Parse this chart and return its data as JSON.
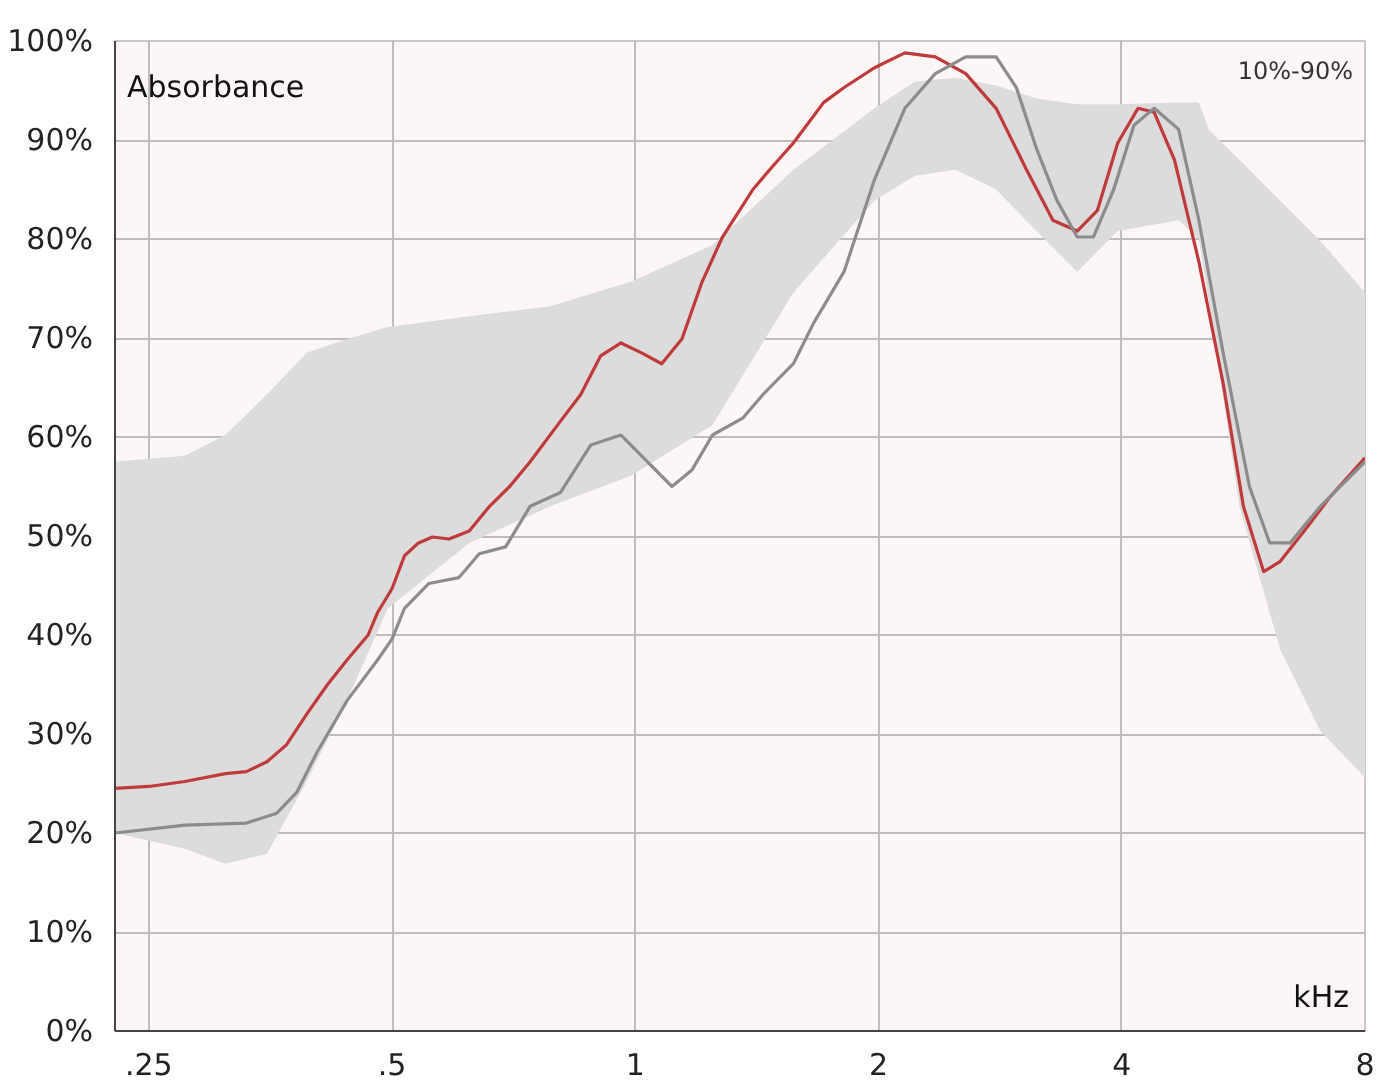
{
  "chart_data": {
    "type": "line",
    "annotations": [
      "10%-90%"
    ],
    "xlabel": "kHz",
    "ylabel": "Absorbance",
    "log": "x",
    "grid": true,
    "xlim": [
      0.227,
      8
    ],
    "ylim": [
      0,
      100
    ],
    "xticks": [
      {
        "value": 0.25,
        "label": ".25"
      },
      {
        "value": 0.5,
        "label": ".5"
      },
      1,
      2,
      4,
      8
    ],
    "yticks": [
      {
        "value": 0,
        "label": "0%"
      },
      {
        "value": 10,
        "label": "10%"
      },
      {
        "value": 20,
        "label": "20%"
      },
      {
        "value": 30,
        "label": "30%"
      },
      {
        "value": 40,
        "label": "40%"
      },
      {
        "value": 50,
        "label": "50%"
      },
      {
        "value": 60,
        "label": "60%"
      },
      {
        "value": 70,
        "label": "70%"
      },
      {
        "value": 80,
        "label": "80%"
      },
      {
        "value": 90,
        "label": "90%"
      },
      {
        "value": 100,
        "label": "100%"
      }
    ],
    "series": [
      {
        "type": "area",
        "color": "#dcdcdc",
        "x": [
          0.227,
          0.277,
          0.311,
          0.35,
          0.392,
          0.44,
          0.494,
          0.623,
          0.785,
          0.989,
          1.246,
          1.569,
          1.977,
          2.219,
          2.491,
          2.796,
          3.138,
          3.523,
          3.954,
          4.702,
          4.983,
          5.128,
          5.593,
          6.277,
          7.045,
          8
        ],
        "values": [
          null,
          null,
          null,
          null,
          null,
          null,
          null,
          null,
          null,
          null,
          null,
          null,
          null,
          null,
          null,
          null,
          null,
          null,
          null,
          null,
          null,
          null,
          null,
          null,
          null,
          null
        ],
        "lower": [
          20,
          18.4,
          16.9,
          17.9,
          25.2,
          33.4,
          42.7,
          49.3,
          53,
          56.1,
          61.2,
          74.6,
          83.9,
          86.4,
          87,
          85,
          80.8,
          76.7,
          80.8,
          81.9,
          80,
          73.6,
          53,
          38.6,
          30.3,
          25.6
        ],
        "upper": [
          57.5,
          58.1,
          60.2,
          64.3,
          68.5,
          69.9,
          71.1,
          72.2,
          73.2,
          75.7,
          79.4,
          87,
          93.2,
          95.9,
          96.3,
          95.5,
          94.2,
          93.6,
          93.6,
          93.8,
          93.8,
          91,
          88,
          83.9,
          79.8,
          74.6
        ]
      },
      {
        "color": "#c0393b",
        "x": [
          0.227,
          0.25,
          0.277,
          0.311,
          0.33,
          0.35,
          0.37,
          0.392,
          0.416,
          0.44,
          0.467,
          0.48,
          0.5,
          0.518,
          0.539,
          0.561,
          0.588,
          0.623,
          0.66,
          0.699,
          0.741,
          0.808,
          0.856,
          0.906,
          0.96,
          1.018,
          1.078,
          1.142,
          1.21,
          1.282,
          1.398,
          1.481,
          1.569,
          1.711,
          1.813,
          1.977,
          2.156,
          2.351,
          2.564,
          2.796,
          3.049,
          3.287,
          3.523,
          3.732,
          3.954,
          4.189,
          4.387,
          4.648,
          4.983,
          5.34,
          5.657,
          5.993,
          6.277,
          6.727,
          7.252,
          8
        ],
        "values": [
          24.5,
          24.7,
          25.2,
          26,
          26.2,
          27.2,
          28.9,
          32,
          35,
          37.5,
          40,
          42.3,
          44.7,
          48,
          49.3,
          49.9,
          49.7,
          50.5,
          53,
          55,
          57.5,
          61.6,
          64.3,
          68.2,
          69.5,
          68.5,
          67.4,
          69.9,
          75.7,
          80.2,
          85,
          87.4,
          89.7,
          93.8,
          95.3,
          97.3,
          98.8,
          98.4,
          96.7,
          93.2,
          87,
          81.9,
          80.8,
          82.9,
          89.7,
          93.2,
          92.8,
          88,
          77.7,
          65.4,
          53,
          46.4,
          47.4,
          50.5,
          54,
          57.9
        ]
      },
      {
        "color": "#8c8c8c",
        "x": [
          0.227,
          0.277,
          0.33,
          0.36,
          0.381,
          0.404,
          0.44,
          0.48,
          0.5,
          0.518,
          0.555,
          0.605,
          0.641,
          0.691,
          0.741,
          0.808,
          0.881,
          0.96,
          1.018,
          1.11,
          1.176,
          1.246,
          1.358,
          1.439,
          1.569,
          1.662,
          1.813,
          1.977,
          2.156,
          2.351,
          2.564,
          2.796,
          2.962,
          3.138,
          3.325,
          3.523,
          3.689,
          3.909,
          4.141,
          4.387,
          4.702,
          4.983,
          5.34,
          5.755,
          6.097,
          6.46,
          7.045,
          8
        ],
        "values": [
          20,
          20.8,
          21,
          22,
          24.1,
          28.2,
          33.4,
          37.5,
          39.6,
          42.7,
          45.2,
          45.8,
          48.2,
          48.9,
          53,
          54.4,
          59.2,
          60.2,
          58.1,
          55,
          56.7,
          60.2,
          61.9,
          64.3,
          67.4,
          71.5,
          76.7,
          86,
          93.2,
          96.7,
          98.4,
          98.4,
          95.3,
          89.1,
          83.9,
          80.2,
          80.2,
          85,
          91.5,
          93.2,
          91.1,
          81.9,
          68.5,
          55,
          49.3,
          49.3,
          53,
          57.5
        ]
      }
    ]
  }
}
